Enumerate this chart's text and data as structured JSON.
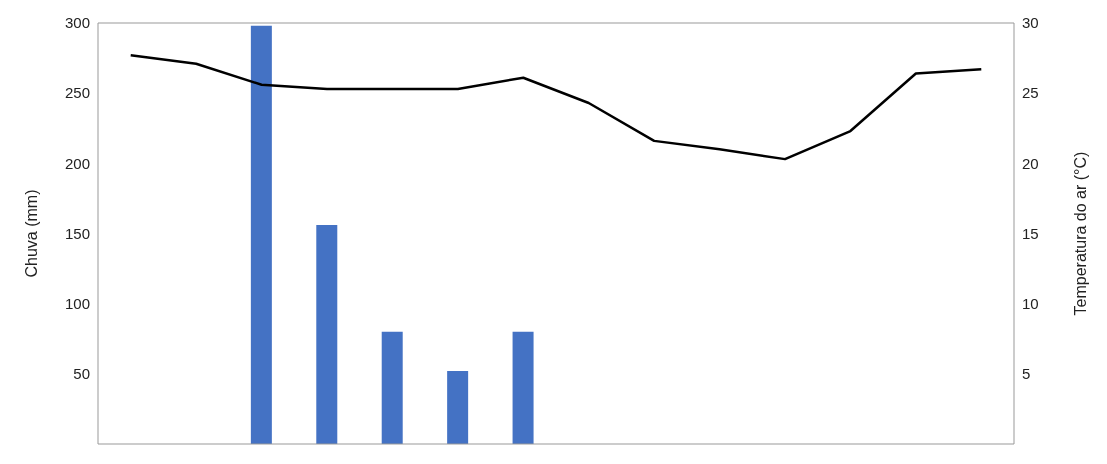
{
  "chart_data": {
    "type": "bar",
    "ylabel": "Chuva (mm)",
    "y2label": "Temperatura do ar (°C)",
    "categories": [
      null,
      null,
      null,
      null,
      null,
      null,
      null,
      null,
      null,
      null,
      null,
      null,
      null,
      null
    ],
    "series": [
      {
        "color": "#4472c4",
        "values": [
          null,
          null,
          298,
          156,
          80,
          52,
          80,
          null,
          null,
          null,
          null,
          null,
          null,
          null
        ]
      },
      {
        "type": "line",
        "axis": "y2",
        "color": "#000000",
        "values": [
          27.7,
          27.1,
          25.6,
          25.3,
          25.3,
          25.3,
          26.1,
          24.3,
          21.6,
          21,
          20.3,
          22.3,
          26.4,
          26.7
        ]
      }
    ],
    "ylim": [
      0,
      300
    ],
    "yticks": [
      50,
      100,
      150,
      200,
      250,
      300
    ],
    "y2lim": [
      0,
      30
    ],
    "y2ticks": [
      5,
      10,
      15,
      20,
      25,
      30
    ],
    "marker": "none",
    "line_style": "solid"
  }
}
